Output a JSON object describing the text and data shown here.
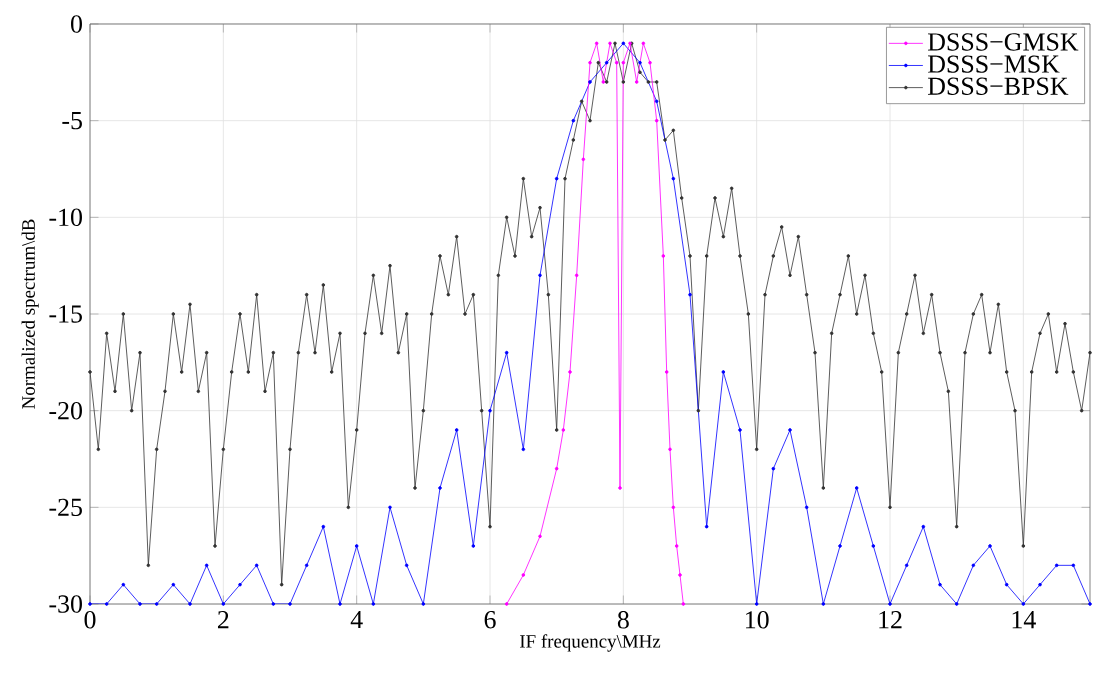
{
  "chart_data": {
    "type": "line",
    "xlabel": "IF frequency\\MHz",
    "ylabel": "Normalized spectrum\\dB",
    "xlim": [
      0,
      15
    ],
    "ylim": [
      -30,
      0
    ],
    "xticks": [
      0,
      2,
      4,
      6,
      8,
      10,
      12,
      14
    ],
    "yticks": [
      0,
      -5,
      -10,
      -15,
      -20,
      -25,
      -30
    ],
    "grid": true,
    "legend": "top right",
    "marker": "circle",
    "line_style": "solid",
    "series": [
      {
        "name": "DSSS−GMSK",
        "color": "#ff00ff",
        "x": [
          6.25,
          6.5,
          6.75,
          7.0,
          7.1,
          7.2,
          7.3,
          7.4,
          7.5,
          7.6,
          7.7,
          7.8,
          7.9,
          7.95,
          8.0,
          8.1,
          8.2,
          8.3,
          8.4,
          8.5,
          8.6,
          8.65,
          8.7,
          8.75,
          8.8,
          8.85,
          8.9
        ],
        "values": [
          -30,
          -28.5,
          -26.5,
          -23,
          -21,
          -18,
          -13,
          -7,
          -2,
          -1,
          -3,
          -1,
          -2,
          -24,
          -2,
          -1,
          -3,
          -1,
          -2,
          -5,
          -12,
          -18,
          -22,
          -25,
          -27,
          -28.5,
          -30
        ]
      },
      {
        "name": "DSSS−MSK",
        "color": "#0000ff",
        "x": [
          0,
          0.25,
          0.5,
          0.75,
          1.0,
          1.25,
          1.5,
          1.75,
          2.0,
          2.25,
          2.5,
          2.75,
          3.0,
          3.25,
          3.5,
          3.75,
          4.0,
          4.25,
          4.5,
          4.75,
          5.0,
          5.25,
          5.5,
          5.75,
          6.0,
          6.25,
          6.5,
          6.75,
          7.0,
          7.25,
          7.5,
          7.75,
          8.0,
          8.25,
          8.5,
          8.75,
          9.0,
          9.25,
          9.5,
          9.75,
          10.0,
          10.25,
          10.5,
          10.75,
          11.0,
          11.25,
          11.5,
          11.75,
          12.0,
          12.25,
          12.5,
          12.75,
          13.0,
          13.25,
          13.5,
          13.75,
          14.0,
          14.25,
          14.5,
          14.75,
          15.0
        ],
        "values": [
          -30,
          -30,
          -29,
          -30,
          -30,
          -29,
          -30,
          -28,
          -30,
          -29,
          -28,
          -30,
          -30,
          -28,
          -26,
          -30,
          -27,
          -30,
          -25,
          -28,
          -30,
          -24,
          -21,
          -27,
          -20,
          -17,
          -22,
          -13,
          -8,
          -5,
          -3,
          -2,
          -1,
          -2,
          -4,
          -8,
          -14,
          -26,
          -18,
          -21,
          -30,
          -23,
          -21,
          -25,
          -30,
          -27,
          -24,
          -27,
          -30,
          -28,
          -26,
          -29,
          -30,
          -28,
          -27,
          -29,
          -30,
          -29,
          -28,
          -28,
          -30
        ]
      },
      {
        "name": "DSSS−BPSK",
        "color": "#333333",
        "x": [
          0,
          0.125,
          0.25,
          0.375,
          0.5,
          0.625,
          0.75,
          0.875,
          1.0,
          1.125,
          1.25,
          1.375,
          1.5,
          1.625,
          1.75,
          1.875,
          2.0,
          2.125,
          2.25,
          2.375,
          2.5,
          2.625,
          2.75,
          2.875,
          3.0,
          3.125,
          3.25,
          3.375,
          3.5,
          3.625,
          3.75,
          3.875,
          4.0,
          4.125,
          4.25,
          4.375,
          4.5,
          4.625,
          4.75,
          4.875,
          5.0,
          5.125,
          5.25,
          5.375,
          5.5,
          5.625,
          5.75,
          5.875,
          6.0,
          6.125,
          6.25,
          6.375,
          6.5,
          6.625,
          6.75,
          6.875,
          7.0,
          7.125,
          7.25,
          7.375,
          7.5,
          7.625,
          7.75,
          7.875,
          8.0,
          8.125,
          8.25,
          8.375,
          8.5,
          8.625,
          8.75,
          8.875,
          9.0,
          9.125,
          9.25,
          9.375,
          9.5,
          9.625,
          9.75,
          9.875,
          10.0,
          10.125,
          10.25,
          10.375,
          10.5,
          10.625,
          10.75,
          10.875,
          11.0,
          11.125,
          11.25,
          11.375,
          11.5,
          11.625,
          11.75,
          11.875,
          12.0,
          12.125,
          12.25,
          12.375,
          12.5,
          12.625,
          12.75,
          12.875,
          13.0,
          13.125,
          13.25,
          13.375,
          13.5,
          13.625,
          13.75,
          13.875,
          14.0,
          14.125,
          14.25,
          14.375,
          14.5,
          14.625,
          14.75,
          14.875,
          15.0
        ],
        "values": [
          -18,
          -22,
          -16,
          -19,
          -15,
          -20,
          -17,
          -28,
          -22,
          -19,
          -15,
          -18,
          -14.5,
          -19,
          -17,
          -27,
          -22,
          -18,
          -15,
          -18,
          -14,
          -19,
          -17,
          -29,
          -22,
          -17,
          -14,
          -17,
          -13.5,
          -18,
          -16,
          -25,
          -21,
          -16,
          -13,
          -16,
          -12.5,
          -17,
          -15,
          -24,
          -20,
          -15,
          -12,
          -14,
          -11,
          -15,
          -14,
          -20,
          -26,
          -13,
          -10,
          -12,
          -8,
          -11,
          -9.5,
          -14,
          -21,
          -8,
          -6,
          -4,
          -5,
          -2,
          -3,
          -1,
          -3,
          -1,
          -2.5,
          -3,
          -3,
          -6,
          -5.5,
          -9,
          -12,
          -20,
          -12,
          -9,
          -11,
          -8.5,
          -12,
          -15,
          -22,
          -14,
          -12,
          -10.5,
          -13,
          -11,
          -14,
          -17,
          -24,
          -16,
          -14,
          -12,
          -15,
          -13,
          -16,
          -18,
          -25,
          -17,
          -15,
          -13,
          -16,
          -14,
          -17,
          -19,
          -26,
          -17,
          -15,
          -14,
          -17,
          -14.5,
          -18,
          -20,
          -27,
          -18,
          -16,
          -15,
          -18,
          -15.5,
          -18,
          -20,
          -17
        ]
      }
    ]
  }
}
